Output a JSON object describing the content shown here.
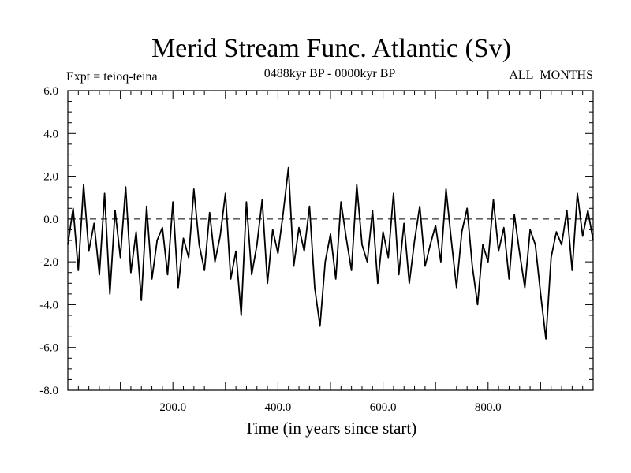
{
  "chart_data": {
    "type": "line",
    "title": "Merid Stream Func. Atlantic (Sv)",
    "subtitle_left": "Expt = teioq-teina",
    "subtitle_center": "0488kyr BP - 0000kyr BP",
    "subtitle_right": "ALL_MONTHS",
    "xlabel": "Time (in years since start)",
    "ylabel": "",
    "xlim": [
      0,
      1000
    ],
    "ylim": [
      -8,
      6
    ],
    "x_ticks": [
      200,
      400,
      600,
      800
    ],
    "x_tick_labels": [
      "200.0",
      "400.0",
      "600.0",
      "800.0"
    ],
    "y_ticks": [
      6,
      4,
      2,
      0,
      -2,
      -4,
      -6,
      -8
    ],
    "y_tick_labels": [
      "6.0",
      "4.0",
      "2.0",
      "0.0",
      "-2.0",
      "-4.0",
      "-6.0",
      "-8.0"
    ],
    "reference_line": {
      "y": 0,
      "style": "dashed"
    },
    "colors": {
      "line": "#000000",
      "axes": "#000000",
      "reference": "#000000"
    },
    "series": [
      {
        "x": [
          0,
          10,
          20,
          30,
          40,
          50,
          60,
          70,
          80,
          90,
          100,
          110,
          120,
          130,
          140,
          150,
          160,
          170,
          180,
          190,
          200,
          210,
          220,
          230,
          240,
          250,
          260,
          270,
          280,
          290,
          300,
          310,
          320,
          330,
          340,
          350,
          360,
          370,
          380,
          390,
          400,
          410,
          420,
          430,
          440,
          450,
          460,
          470,
          480,
          490,
          500,
          510,
          520,
          530,
          540,
          550,
          560,
          570,
          580,
          590,
          600,
          610,
          620,
          630,
          640,
          650,
          660,
          670,
          680,
          690,
          700,
          710,
          720,
          730,
          740,
          750,
          760,
          770,
          780,
          790,
          800,
          810,
          820,
          830,
          840,
          850,
          860,
          870,
          880,
          890,
          900,
          910,
          920,
          930,
          940,
          950,
          960,
          970,
          980,
          990,
          1000
        ],
        "values": [
          -1.2,
          0.5,
          -2.4,
          1.6,
          -1.5,
          -0.2,
          -2.6,
          1.2,
          -3.5,
          0.4,
          -1.8,
          1.5,
          -2.5,
          -0.6,
          -3.8,
          0.6,
          -2.8,
          -1.0,
          -0.4,
          -2.6,
          0.8,
          -3.2,
          -0.9,
          -1.8,
          1.4,
          -1.2,
          -2.4,
          0.3,
          -2.0,
          -0.8,
          1.2,
          -2.8,
          -1.5,
          -4.5,
          0.8,
          -2.6,
          -1.2,
          0.9,
          -3.0,
          -0.5,
          -1.6,
          0.3,
          2.4,
          -2.2,
          -0.4,
          -1.5,
          0.6,
          -3.2,
          -5.0,
          -2.0,
          -0.7,
          -2.8,
          0.8,
          -0.9,
          -2.4,
          1.6,
          -1.2,
          -2.0,
          0.4,
          -3.0,
          -0.6,
          -1.8,
          1.2,
          -2.6,
          -0.2,
          -3.0,
          -1.0,
          0.6,
          -2.2,
          -1.2,
          -0.3,
          -2.0,
          1.4,
          -1.0,
          -3.2,
          -0.6,
          0.5,
          -2.2,
          -4.0,
          -1.2,
          -2.0,
          0.9,
          -1.5,
          -0.4,
          -2.8,
          0.2,
          -1.6,
          -3.2,
          -0.5,
          -1.2,
          -3.5,
          -5.6,
          -1.8,
          -0.6,
          -1.2,
          0.4,
          -2.4,
          1.2,
          -0.8,
          0.4,
          -1.0
        ]
      }
    ]
  }
}
